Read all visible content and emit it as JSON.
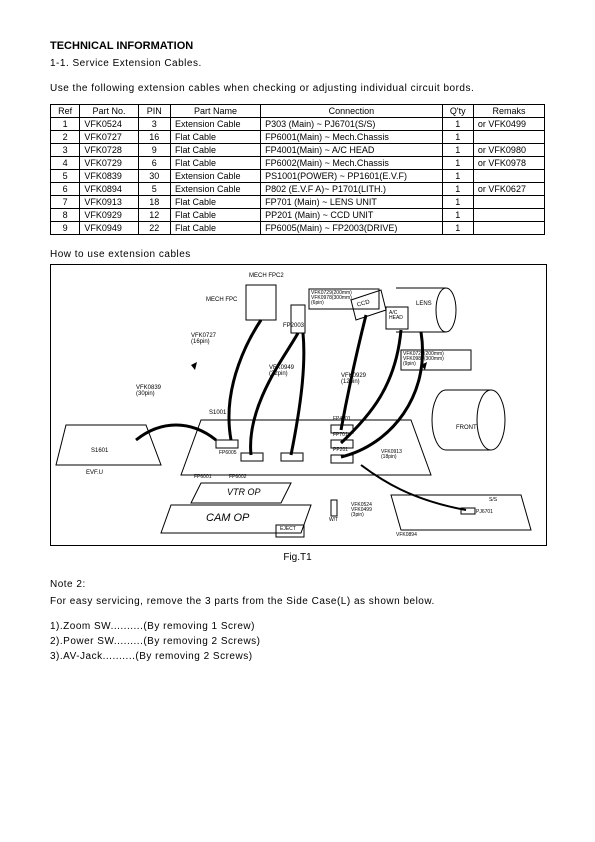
{
  "header": {
    "title": "TECHNICAL INFORMATION",
    "subtitle": "1-1. Service Extension Cables.",
    "intro": "Use the following extension cables when checking or adjusting individual circuit bords."
  },
  "table": {
    "columns": [
      "Ref",
      "Part No.",
      "PIN",
      "Part Name",
      "Connection",
      "Q'ty",
      "Remaks"
    ],
    "rows": [
      [
        "1",
        "VFK0524",
        "3",
        "Extension Cable",
        "P303 (Main)   ~ PJ6701(S/S)",
        "1",
        "or VFK0499"
      ],
      [
        "2",
        "VFK0727",
        "16",
        "Flat Cable",
        "FP6001(Main)   ~ Mech.Chassis",
        "1",
        ""
      ],
      [
        "3",
        "VFK0728",
        "9",
        "Flat Cable",
        "FP4001(Main)   ~ A/C HEAD",
        "1",
        "or VFK0980"
      ],
      [
        "4",
        "VFK0729",
        "6",
        "Flat Cable",
        "FP6002(Main)   ~ Mech.Chassis",
        "1",
        "or VFK0978"
      ],
      [
        "5",
        "VFK0839",
        "30",
        "Extension Cable",
        "PS1001(POWER)  ~ PP1601(E.V.F)",
        "1",
        ""
      ],
      [
        "6",
        "VFK0894",
        "5",
        "Extension Cable",
        "P802 (E.V.F A)~ P1701(LITH.)",
        "1",
        "or VFK0627"
      ],
      [
        "7",
        "VFK0913",
        "18",
        "Flat Cable",
        "FP701 (Main)   ~ LENS UNIT",
        "1",
        ""
      ],
      [
        "8",
        "VFK0929",
        "12",
        "Flat Cable",
        "PP201 (Main)   ~ CCD UNIT",
        "1",
        ""
      ],
      [
        "9",
        "VFK0949",
        "22",
        "Flat Cable",
        "FP6005(Main)   ~ FP2003(DRIVE)",
        "1",
        ""
      ]
    ]
  },
  "diagram": {
    "title": "How to use extension cables",
    "caption": "Fig.T1",
    "labels": {
      "mech_fpc2": "MECH FPC2",
      "mech_fpc": "MECH FPC",
      "vfk0727": "VFK0727\n(16pin)",
      "fp2003": "FP2003",
      "vfk0729set": "VFK0729(200mm)\nVFK0978(300mm)\n(6pin)",
      "ccd": "CCD",
      "ac_head": "A/C\nHEAD",
      "lens": "LENS",
      "vfk0949": "VFK0949\n(22pin)",
      "vfk0929": "VFK0929\n(12pin)",
      "vfk0728set": "VFK0728(200mm)\nVFK0980(300mm)\n(9pin)",
      "vfk0839": "VFK0839\n(30pin)",
      "s1001": "S1001",
      "s1601": "S1601",
      "evfu": "EVF.U",
      "fp6005": "FP6005",
      "fp6001": "FP6001",
      "fp6002": "FP6002",
      "fp4001": "FP4001",
      "fp701": "FP701",
      "pp201": "PP201",
      "vfk0913": "VFK0913\n(18pin)",
      "front": "FRONT",
      "vtr_op": "VTR OP",
      "cam_op": "CAM OP",
      "eject": "EJECT",
      "wt": "W/T",
      "vfk0524set": "VFK0524\nVFK0499\n(3pin)",
      "vfk0894": "VFK0894",
      "ss": "S/S",
      "pj6701": "PJ6701"
    }
  },
  "note": {
    "heading": "Note 2:",
    "body": "For easy servicing, remove the 3 parts from the Side Case(L) as shown below.",
    "items": [
      "1).Zoom SW..........(By removing 1 Screw)",
      "2).Power SW.........(By removing 2 Screws)",
      "3).AV-Jack..........(By removing 2 Screws)"
    ]
  }
}
